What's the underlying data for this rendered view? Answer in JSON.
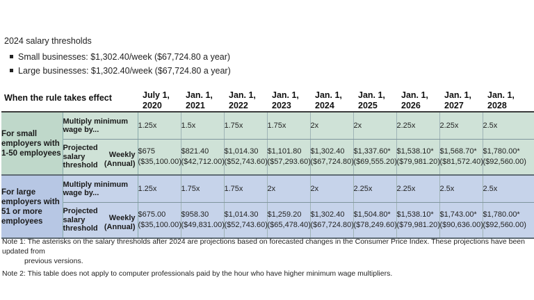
{
  "heading": "2024 salary thresholds",
  "bullets": [
    "Small businesses: $1,302.40/week ($67,724.80 a year)",
    "Large businesses: $1,302.40/week ($67,724.80 a year)"
  ],
  "table": {
    "rule_label": "When the rule takes effect",
    "dates": [
      [
        "July 1,",
        "2020"
      ],
      [
        "Jan. 1,",
        "2021"
      ],
      [
        "Jan. 1,",
        "2022"
      ],
      [
        "Jan. 1,",
        "2023"
      ],
      [
        "Jan. 1,",
        "2024"
      ],
      [
        "Jan. 1,",
        "2025"
      ],
      [
        "Jan. 1,",
        "2026"
      ],
      [
        "Jan. 1,",
        "2027"
      ],
      [
        "Jan. 1,",
        "2028"
      ]
    ],
    "multiply_label": "Multiply minimum wage by...",
    "projected_label_lines": [
      "Projected",
      "salary",
      "threshold"
    ],
    "weekly_label": "Weekly",
    "annual_label": "(Annual)",
    "groups": [
      {
        "label": "For small employers with 1-50 employees",
        "multipliers": [
          "1.25x",
          "1.5x",
          "1.75x",
          "1.75x",
          "2x",
          "2x",
          "2.25x",
          "2.25x",
          "2.5x"
        ],
        "weekly": [
          "$675",
          "$821.40",
          "$1,014.30",
          "$1,101.80",
          "$1,302.40",
          "$1,337.60*",
          "$1,538.10*",
          "$1,568.70*",
          "$1,780.00*"
        ],
        "annual": [
          "($35,100.00)",
          "($42,712.00)",
          "($52,743.60)",
          "($57,293.60)",
          "($67,724.80)",
          "($69,555.20)",
          "($79,981.20)",
          "($81,572.40)",
          "($92,560.00)"
        ]
      },
      {
        "label": "For large employers with 51 or more employees",
        "multipliers": [
          "1.25x",
          "1.75x",
          "1.75x",
          "2x",
          "2x",
          "2.25x",
          "2.25x",
          "2.5x",
          "2.5x"
        ],
        "weekly": [
          "$675.00",
          "$958.30",
          "$1,014.30",
          "$1,259.20",
          "$1,302.40",
          "$1,504.80*",
          "$1,538.10*",
          "$1,743.00*",
          "$1,780.00*"
        ],
        "annual": [
          "($35,100.00)",
          "($49,831.00)",
          "($52,743.60)",
          "($65,478.40)",
          "($67,724.80)",
          "($78,249.60)",
          "($79,981.20)",
          "($90,636.00)",
          "($92,560.00)"
        ]
      }
    ]
  },
  "notes": [
    {
      "lead": "Note 1: The asterisks on the salary thresholds after 2024 are projections based on forecasted changes in the Consumer Price Index. These projections have been updated from",
      "cont": "previous versions."
    },
    {
      "lead": "Note 2: This table does not apply to computer professionals paid by the hour who have higher minimum wage multipliers.",
      "cont": ""
    }
  ]
}
